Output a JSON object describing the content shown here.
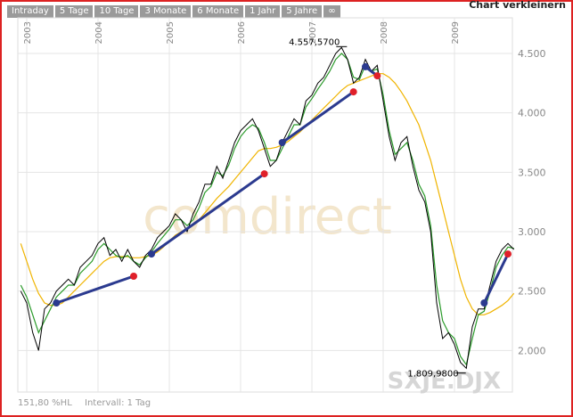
{
  "ui": {
    "tabs": [
      "Intraday",
      "5 Tage",
      "10 Tage",
      "3 Monate",
      "6 Monate",
      "1 Jahr",
      "5 Jahre",
      "∞"
    ],
    "action": "Chart verkleinern",
    "scale": "151,80 %HL",
    "interval": "Intervall: 1 Tag",
    "watermark": "comdirect",
    "symbol": "SXJE.DJX"
  },
  "chart_data": {
    "type": "line",
    "categories": [
      null,
      "2003",
      null,
      null,
      null,
      null,
      null,
      null,
      null,
      null,
      null,
      null,
      null,
      "2004",
      null,
      null,
      null,
      null,
      null,
      null,
      null,
      null,
      null,
      null,
      null,
      "2005",
      null,
      null,
      null,
      null,
      null,
      null,
      null,
      null,
      null,
      null,
      null,
      "2006",
      null,
      null,
      null,
      null,
      null,
      null,
      null,
      null,
      null,
      null,
      null,
      "2007",
      null,
      null,
      null,
      null,
      null,
      null,
      null,
      null,
      null,
      null,
      null,
      "2008",
      null,
      null,
      null,
      null,
      null,
      null,
      null,
      null,
      null,
      null,
      null,
      "2009",
      null,
      null,
      null,
      null,
      null,
      null,
      null,
      null,
      null,
      null
    ],
    "series": [
      {
        "color": "#f0b400",
        "values": [
          2900,
          2750,
          2600,
          2480,
          2400,
          2380,
          2380,
          2400,
          2450,
          2500,
          2550,
          2600,
          2650,
          2700,
          2750,
          2780,
          2790,
          2790,
          2790,
          2780,
          2780,
          2790,
          2800,
          2830,
          2870,
          2920,
          2970,
          3000,
          3020,
          3060,
          3100,
          3160,
          3220,
          3280,
          3330,
          3380,
          3440,
          3500,
          3560,
          3620,
          3680,
          3700,
          3700,
          3710,
          3730,
          3760,
          3800,
          3840,
          3890,
          3940,
          3990,
          4040,
          4090,
          4140,
          4190,
          4230,
          4250,
          4270,
          4290,
          4310,
          4330,
          4330,
          4300,
          4250,
          4180,
          4100,
          4000,
          3900,
          3750,
          3600,
          3400,
          3200,
          3000,
          2800,
          2600,
          2450,
          2350,
          2300,
          2300,
          2320,
          2350,
          2380,
          2420,
          2480
        ]
      },
      {
        "color": "#2a9a2a",
        "values": [
          2550,
          2450,
          2300,
          2150,
          2250,
          2350,
          2450,
          2500,
          2550,
          2550,
          2650,
          2700,
          2750,
          2850,
          2900,
          2850,
          2800,
          2780,
          2800,
          2750,
          2720,
          2780,
          2830,
          2900,
          2960,
          3020,
          3100,
          3100,
          3050,
          3100,
          3200,
          3330,
          3380,
          3500,
          3470,
          3560,
          3700,
          3800,
          3860,
          3900,
          3870,
          3750,
          3600,
          3600,
          3700,
          3800,
          3900,
          3900,
          4050,
          4120,
          4200,
          4270,
          4350,
          4450,
          4500,
          4450,
          4300,
          4280,
          4400,
          4350,
          4370,
          4150,
          3850,
          3650,
          3700,
          3750,
          3600,
          3400,
          3300,
          3050,
          2550,
          2250,
          2150,
          2100,
          1950,
          1880,
          2100,
          2300,
          2330,
          2500,
          2700,
          2800,
          2870,
          2860
        ]
      },
      {
        "color": "#000000",
        "values": [
          2500,
          2400,
          2150,
          2000,
          2350,
          2400,
          2500,
          2550,
          2600,
          2550,
          2700,
          2750,
          2800,
          2900,
          2950,
          2800,
          2850,
          2750,
          2850,
          2750,
          2700,
          2800,
          2850,
          2950,
          3000,
          3050,
          3150,
          3100,
          3000,
          3150,
          3250,
          3400,
          3400,
          3550,
          3450,
          3600,
          3750,
          3850,
          3900,
          3950,
          3850,
          3700,
          3550,
          3600,
          3750,
          3850,
          3950,
          3900,
          4100,
          4150,
          4250,
          4300,
          4400,
          4500,
          4550,
          4450,
          4250,
          4300,
          4450,
          4350,
          4400,
          4100,
          3800,
          3600,
          3750,
          3800,
          3550,
          3350,
          3250,
          3000,
          2400,
          2100,
          2150,
          2050,
          1900,
          1850,
          2200,
          2350,
          2350,
          2550,
          2750,
          2850,
          2900,
          2850
        ]
      }
    ],
    "trend_color": "#2b3a8f",
    "trend_start_color": "#2b3a8f",
    "trend_end_color": "#e0202a",
    "trend_lines": [
      {
        "x": [
          6,
          19
        ],
        "values": [
          2400,
          2625
        ]
      },
      {
        "x": [
          22,
          41
        ],
        "values": [
          2812,
          3487
        ]
      },
      {
        "x": [
          44,
          56
        ],
        "values": [
          3750,
          4177
        ]
      },
      {
        "x": [
          58,
          60
        ],
        "values": [
          4388,
          4312
        ]
      },
      {
        "x": [
          78,
          82
        ],
        "values": [
          2400,
          2812
        ]
      }
    ],
    "annotations": [
      {
        "text": "4.557,5700",
        "value": 4557.57,
        "x": 54
      },
      {
        "text": "1.809,9800",
        "value": 1809.98,
        "x": 74
      }
    ],
    "ylim": [
      1650,
      4800
    ],
    "yticks": [
      {
        "value": 2000,
        "label": "2.000"
      },
      {
        "value": 2500,
        "label": "2.500"
      },
      {
        "value": 3000,
        "label": "3.000"
      },
      {
        "value": 3500,
        "label": "3.500"
      },
      {
        "value": 4000,
        "label": "4.000"
      },
      {
        "value": 4500,
        "label": "4.500"
      }
    ],
    "grid": true
  }
}
